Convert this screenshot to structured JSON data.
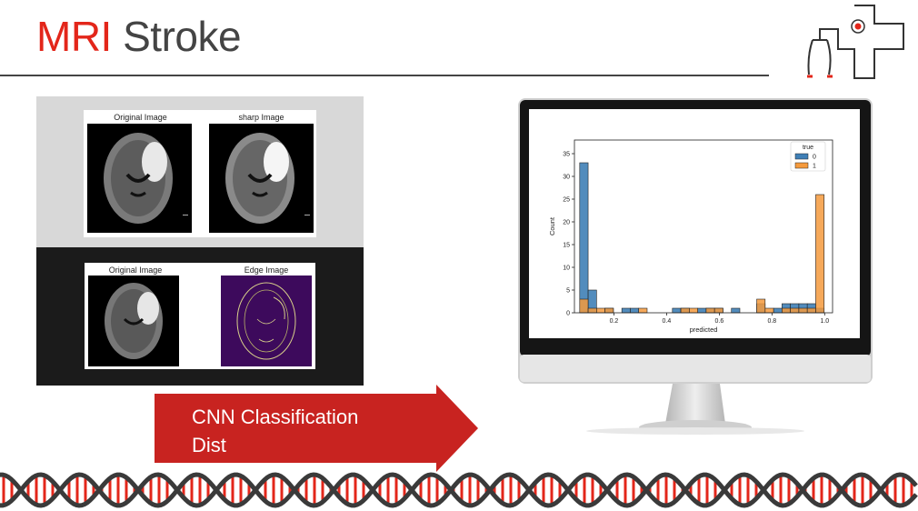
{
  "slide": {
    "title_part1": "MRI",
    "title_part2": "Stroke",
    "accent_color": "#e3261a",
    "text_color": "#444444"
  },
  "logo": {
    "icon": "stethoscope-cross-icon"
  },
  "panels": {
    "top": {
      "left_title": "Original Image",
      "right_title": "sharp Image"
    },
    "bottom": {
      "left_title": "Original Image",
      "right_title": "Edge Image"
    }
  },
  "arrow": {
    "line1": "CNN Classification",
    "line2": "Dist",
    "color": "#c82320"
  },
  "chart_data": {
    "type": "bar",
    "xlabel": "predicted",
    "ylabel": "Count",
    "xlim": [
      0.05,
      1.03
    ],
    "ylim": [
      0,
      38
    ],
    "xticks": [
      0.2,
      0.4,
      0.6,
      0.8,
      1.0
    ],
    "xtick_labels": [
      "0.2",
      "0.4",
      "0.6",
      "0.8",
      "1.0"
    ],
    "yticks": [
      0,
      5,
      10,
      15,
      20,
      25,
      30,
      35
    ],
    "ytick_labels": [
      "0",
      "5",
      "10",
      "15",
      "20",
      "25",
      "30",
      "35"
    ],
    "legend": {
      "title": "true",
      "position": "top-right"
    },
    "bin_edges": [
      0.07,
      0.102,
      0.134,
      0.166,
      0.198,
      0.23,
      0.262,
      0.294,
      0.326,
      0.358,
      0.39,
      0.422,
      0.454,
      0.486,
      0.518,
      0.55,
      0.582,
      0.614,
      0.646,
      0.678,
      0.71,
      0.742,
      0.774,
      0.806,
      0.838,
      0.87,
      0.902,
      0.934,
      0.966,
      0.998
    ],
    "series": [
      {
        "name": "0",
        "color": "#3f7fb6",
        "values": [
          33,
          5,
          0,
          1,
          0,
          1,
          1,
          0,
          0,
          0,
          0,
          1,
          1,
          0,
          1,
          1,
          1,
          0,
          1,
          0,
          0,
          2,
          0,
          1,
          2,
          2,
          2,
          2,
          1
        ]
      },
      {
        "name": "1",
        "color": "#f59a3d",
        "values": [
          3,
          1,
          1,
          1,
          0,
          0,
          0,
          1,
          0,
          0,
          0,
          0,
          1,
          1,
          0,
          1,
          1,
          0,
          0,
          0,
          0,
          3,
          1,
          0,
          1,
          1,
          1,
          1,
          26
        ]
      }
    ]
  },
  "dna": {
    "strand_color": "#3a3a3a",
    "rung_color": "#e3261a"
  }
}
